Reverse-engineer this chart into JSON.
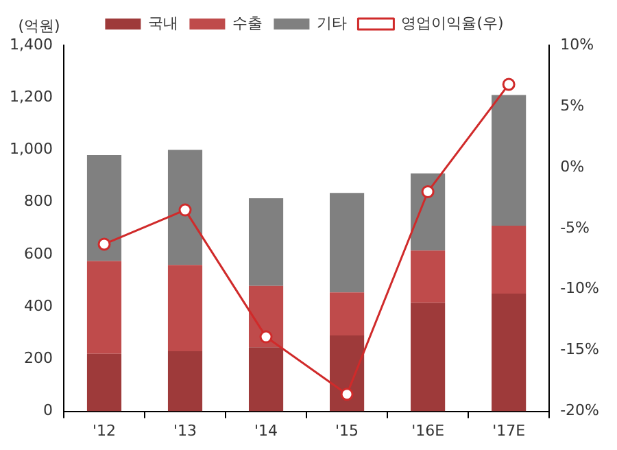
{
  "chart_data": {
    "type": "bar",
    "stacked": true,
    "ylabel": "(억원)",
    "categories": [
      "'12",
      "'13",
      "'14",
      "'15",
      "'16E",
      "'17E"
    ],
    "series": [
      {
        "name": "국내",
        "color": "#9e3a3a",
        "values": [
          220,
          230,
          245,
          290,
          415,
          450
        ]
      },
      {
        "name": "수출",
        "color": "#bf4b4b",
        "values": [
          355,
          330,
          235,
          165,
          200,
          260
        ]
      },
      {
        "name": "기타",
        "color": "#808080",
        "values": [
          405,
          440,
          335,
          380,
          295,
          500
        ]
      },
      {
        "name": "영업이익율(우)",
        "type": "line",
        "axis": "y2",
        "color": "#d02a2a",
        "marker": "circle",
        "values": [
          -6.3,
          -3.5,
          -13.9,
          -18.6,
          -2.0,
          6.8
        ]
      }
    ],
    "ylim": [
      0,
      1400
    ],
    "yticks": [
      0,
      200,
      400,
      600,
      800,
      {
        "value": 1000,
        "label": "1,000"
      },
      {
        "value": 1200,
        "label": "1,200"
      },
      {
        "value": 1400,
        "label": "1,400"
      }
    ],
    "y2lim": [
      -20,
      10
    ],
    "y2ticks": [
      {
        "value": -20,
        "label": "-20%"
      },
      {
        "value": -15,
        "label": "-15%"
      },
      {
        "value": -10,
        "label": "-10%"
      },
      {
        "value": -5,
        "label": "-5%"
      },
      {
        "value": 0,
        "label": "0%"
      },
      {
        "value": 5,
        "label": "5%"
      },
      {
        "value": 10,
        "label": "10%"
      }
    ],
    "grid": false,
    "legend": "top"
  }
}
